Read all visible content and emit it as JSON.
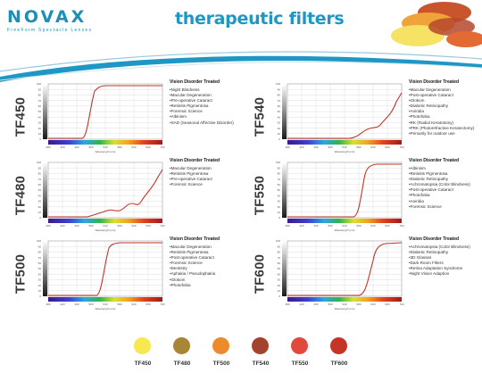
{
  "brand": {
    "logo": "NOVAX",
    "tagline": "FreeForm Spectacle Lenses"
  },
  "title": "therapeutic filters",
  "colors": {
    "brand": "#1c8fb6",
    "title": "#1f97c4",
    "curve": "#c2352b",
    "wave": "#1f97c4"
  },
  "panels": [
    {
      "code": "TF450",
      "curve": "tf450",
      "heading": "Vision Disorder Treated",
      "items": [
        "Night Blindness",
        "Macular Degeneration",
        "Pre-operative Cataract",
        "Retinitis Pigmentosa",
        "Forensic Science",
        "Albinism",
        "SAD (Seasonal Affective Disorder)"
      ]
    },
    {
      "code": "TF540",
      "curve": "tf540",
      "heading": "Vision Disorder Treated",
      "items": [
        "Macular Degeneration",
        "Post-operative Cataract",
        "Glokom",
        "Diabetic Retinopathy",
        "Aniridia",
        "Photofobia",
        "RK (Radial Keratotomy)",
        "PRK (Photorefractive Keratectomy)",
        "Primarily for outdoor use"
      ]
    },
    {
      "code": "TF480",
      "curve": "tf480",
      "heading": "Vision Disorder Treated",
      "items": [
        "Macular Degeneration",
        "Retinitis Pigmentosa",
        "Pre-operative Cataract",
        "Forensic Science"
      ]
    },
    {
      "code": "TF550",
      "curve": "tf550",
      "heading": "Vision Disorder Treated",
      "items": [
        "Albinism",
        "Retinitis Pigmentosa",
        "Diabetic Retinopathy",
        "Achromatopsia (Color Blindness)",
        "Post-operative Cataract",
        "Photofobia",
        "Aniridia",
        "Forensic Science"
      ]
    },
    {
      "code": "TF500",
      "curve": "tf500",
      "heading": "Vision Disorder Treated",
      "items": [
        "Macular Degeneration",
        "Retinitis Pigmentosa",
        "Post-operative Cataract",
        "Forensic Science",
        "Dentistry",
        "Aphakia / Pseudophakia",
        "Glokom",
        "Photofobia"
      ]
    },
    {
      "code": "TF600",
      "curve": "tf600",
      "heading": "Vision Disorder Treated",
      "items": [
        "Achromatopsia (Color Blindness)",
        "Diabetic Retinopathy",
        "3D Glasses",
        "Dark Room Filters",
        "Retina Adaptation Syndrome",
        "Night Vision Adaption"
      ]
    }
  ],
  "graph": {
    "x_ticks": [
      "380",
      "420",
      "460",
      "500",
      "540",
      "580",
      "620",
      "660",
      "700"
    ],
    "y_ticks": [
      "100",
      "90",
      "80",
      "70",
      "60",
      "50",
      "40",
      "30",
      "20",
      "10",
      "0"
    ],
    "x_label": "Wavelength (nm)"
  },
  "swatches": [
    {
      "label": "TF450",
      "color": "#f7e850"
    },
    {
      "label": "TF480",
      "color": "#a98635"
    },
    {
      "label": "TF500",
      "color": "#ee8a2c"
    },
    {
      "label": "TF540",
      "color": "#a4422d"
    },
    {
      "label": "TF550",
      "color": "#e2493a"
    },
    {
      "label": "TF600",
      "color": "#c53526"
    }
  ]
}
